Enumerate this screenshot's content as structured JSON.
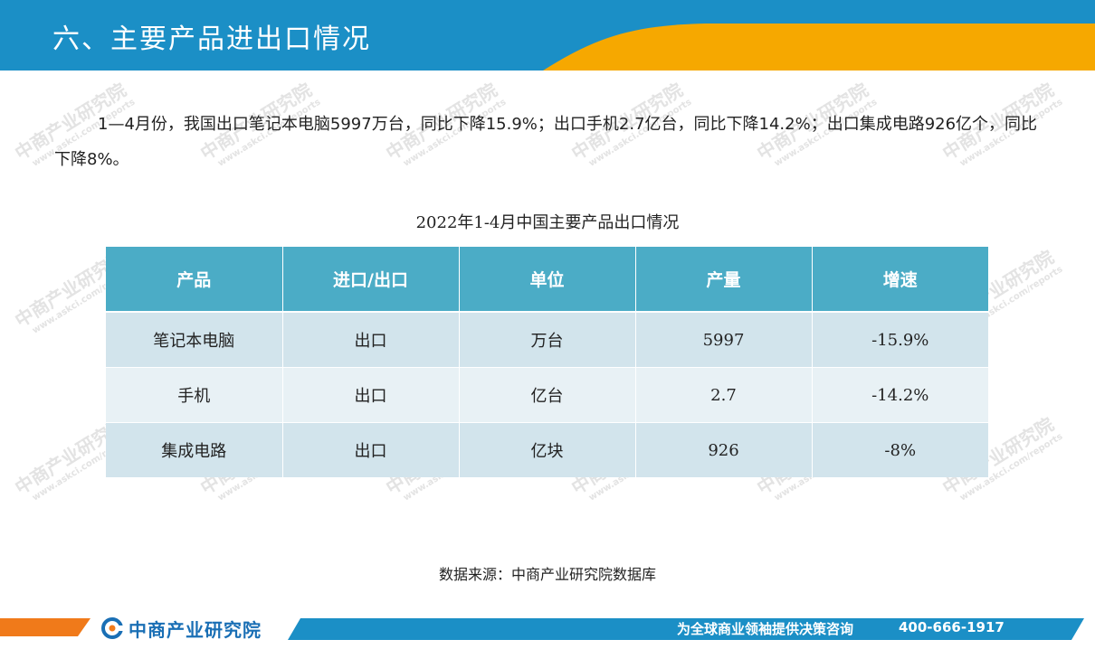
{
  "header": {
    "title": "六、主要产品进出口情况"
  },
  "paragraph": "1—4月份，我国出口笔记本电脑5997万台，同比下降15.9%；出口手机2.7亿台，同比下降14.2%；出口集成电路926亿个，同比下降8%。",
  "table": {
    "caption": "2022年1-4月中国主要产品出口情况",
    "headers": [
      "产品",
      "进口/出口",
      "单位",
      "产量",
      "增速"
    ],
    "rows": [
      [
        "笔记本电脑",
        "出口",
        "万台",
        "5997",
        "-15.9%"
      ],
      [
        "手机",
        "出口",
        "亿台",
        "2.7",
        "-14.2%"
      ],
      [
        "集成电路",
        "出口",
        "亿块",
        "926",
        "-8%"
      ]
    ]
  },
  "source": "数据来源：中商产业研究院数据库",
  "footer": {
    "logo_text": "中商产业研究院",
    "slogan": "为全球商业领袖提供决策咨询",
    "phone": "400-666-1917"
  },
  "watermark": {
    "line1": "中商产业研究院",
    "line2": "www.askci.com/reports"
  },
  "colors": {
    "header_blue": "#1b8fc6",
    "accent_orange": "#f6a800",
    "table_header": "#4bacc6",
    "row_a": "#d2e4ec",
    "row_b": "#e8f1f5"
  }
}
